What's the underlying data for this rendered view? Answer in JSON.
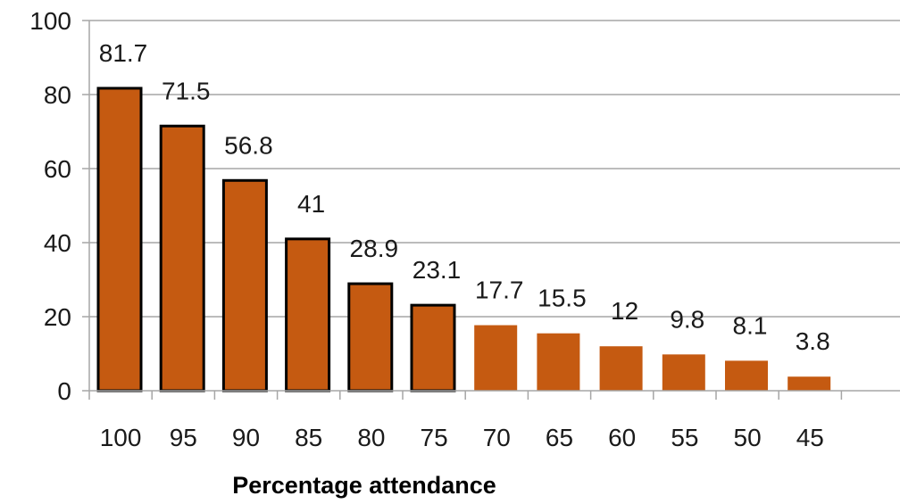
{
  "chart_data": {
    "type": "bar",
    "title": "",
    "xlabel": "Percentage attendance",
    "ylabel": "",
    "categories": [
      "100",
      "95",
      "90",
      "85",
      "80",
      "75",
      "70",
      "65",
      "60",
      "55",
      "50",
      "45"
    ],
    "values": [
      81.7,
      71.5,
      56.8,
      41,
      28.9,
      23.1,
      17.7,
      15.5,
      12,
      9.8,
      8.1,
      3.8
    ],
    "data_labels": [
      "81.7",
      "71.5",
      "56.8",
      "41",
      "28.9",
      "23.1",
      "17.7",
      "15.5",
      "12",
      "9.8",
      "8.1",
      "3.8"
    ],
    "outlined": [
      true,
      true,
      true,
      true,
      true,
      true,
      false,
      false,
      false,
      false,
      false,
      false
    ],
    "ylim": [
      0,
      100
    ],
    "yticks": [
      0,
      20,
      40,
      60,
      80,
      100
    ],
    "ytick_labels": [
      "0",
      "20",
      "40",
      "60",
      "80",
      "100"
    ],
    "grid": true,
    "legend": "none",
    "colors": {
      "bar": "#C55A11",
      "bar_outline": "#000000",
      "grid": "#a6a6a6",
      "axis": "#a6a6a6"
    }
  }
}
